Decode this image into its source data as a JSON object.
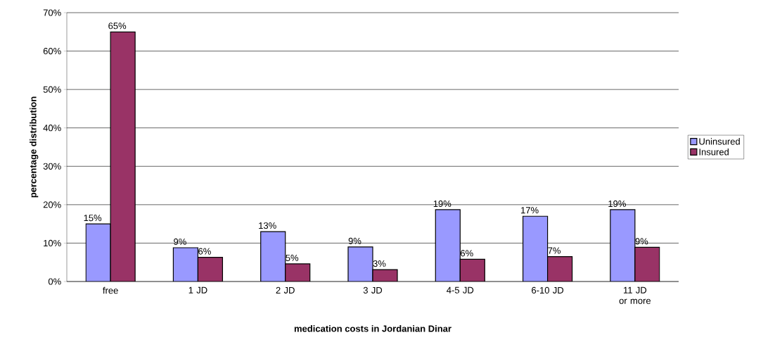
{
  "chart_data": {
    "type": "bar",
    "xlabel": "medication costs in Jordanian Dinar",
    "ylabel": "percentage distribution",
    "categories": [
      "free",
      "1 JD",
      "2 JD",
      "3 JD",
      "4-5 JD",
      "6-10 JD",
      "11 JD or more"
    ],
    "series": [
      {
        "name": "Uninsured",
        "color": "#9999ff",
        "values": [
          15.0,
          8.8,
          13.0,
          9.0,
          18.7,
          17.0,
          18.7
        ],
        "value_labels": [
          "15%",
          "9%",
          "13%",
          "9%",
          "19%",
          "17%",
          "19%"
        ]
      },
      {
        "name": "Insured",
        "color": "#993366",
        "values": [
          65.0,
          6.3,
          4.6,
          3.1,
          5.8,
          6.5,
          8.9
        ],
        "value_labels": [
          "65%",
          "6%",
          "5%",
          "3%",
          "6%",
          "7%",
          "9%"
        ]
      }
    ],
    "ylim": [
      0,
      70
    ],
    "yticks": [
      {
        "value": 0,
        "label": "0%"
      },
      {
        "value": 10,
        "label": "10%"
      },
      {
        "value": 20,
        "label": "20%"
      },
      {
        "value": 30,
        "label": "30%"
      },
      {
        "value": 40,
        "label": "40%"
      },
      {
        "value": 50,
        "label": "50%"
      },
      {
        "value": 60,
        "label": "60%"
      },
      {
        "value": 70,
        "label": "70%"
      }
    ],
    "grid": "y",
    "legend": "right"
  }
}
